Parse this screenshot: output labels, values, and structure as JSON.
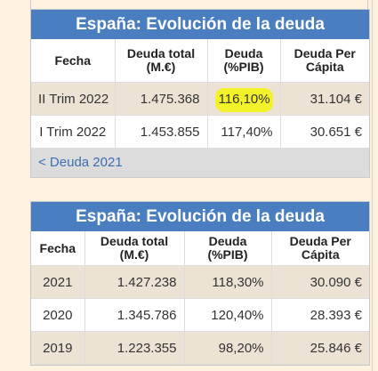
{
  "table1": {
    "title": "España: Evolución de la deuda",
    "headers": [
      "Fecha",
      "Deuda total (M.€)",
      "Deuda (%PIB)",
      "Deuda Per Cápita"
    ],
    "header_lines": [
      [
        "Fecha"
      ],
      [
        "Deuda total",
        "(M.€)"
      ],
      [
        "Deuda",
        "(%PIB)"
      ],
      [
        "Deuda Per",
        "Cápita"
      ]
    ],
    "rows": [
      {
        "fecha": "II Trim 2022",
        "total": "1.475.368",
        "pib": "116,10%",
        "per_capita": "31.104 €"
      },
      {
        "fecha": "I Trim 2022",
        "total": "1.453.855",
        "pib": "117,40%",
        "per_capita": "30.651 €"
      }
    ],
    "footer_link": "< Deuda 2021",
    "highlight_color": "#f3f22a"
  },
  "table2": {
    "title": "España: Evolución de la deuda",
    "header_lines": [
      [
        "Fecha"
      ],
      [
        "Deuda total",
        "(M.€)"
      ],
      [
        "Deuda",
        "(%PIB)"
      ],
      [
        "Deuda Per",
        "Cápita"
      ]
    ],
    "rows": [
      {
        "fecha": "2021",
        "total": "1.427.238",
        "pib": "118,30%",
        "per_capita": "30.090 €"
      },
      {
        "fecha": "2020",
        "total": "1.345.786",
        "pib": "120,40%",
        "per_capita": "28.393 €"
      },
      {
        "fecha": "2019",
        "total": "1.223.355",
        "pib": "98,20%",
        "per_capita": "25.846 €"
      }
    ]
  },
  "colors": {
    "header_blue": "#4a7ec0",
    "row_alt": "#ede3d5",
    "page_bg": "#fdf1df",
    "link": "#3b6fb3"
  }
}
